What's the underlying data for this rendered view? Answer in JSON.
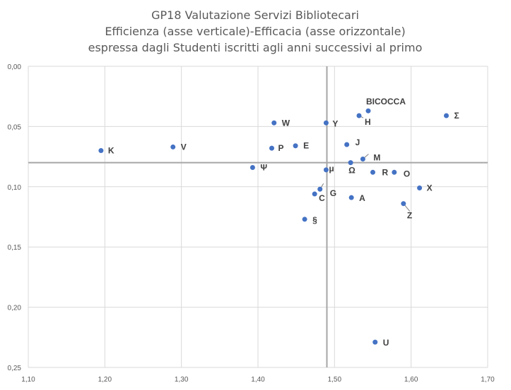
{
  "chart_data": {
    "type": "scatter",
    "title": [
      "GP18 Valutazione Servizi Bibliotecari",
      "Efficienza (asse verticale)-Efficacia (asse orizzontale)",
      "espressa dagli Studenti iscritti agli anni successivi al primo"
    ],
    "xlim": [
      1.1,
      1.7
    ],
    "ylim": [
      0.0,
      0.25
    ],
    "y_inverted": true,
    "x_ticks": [
      "1,10",
      "1,20",
      "1,30",
      "1,40",
      "1,50",
      "1,60",
      "1,70"
    ],
    "y_ticks": [
      "0,00",
      "0,05",
      "0,10",
      "0,15",
      "0,20",
      "0,25"
    ],
    "grid": true,
    "reference_lines": {
      "x": 1.49,
      "y": 0.08
    },
    "point_color": "#4472C4",
    "points": [
      {
        "label": "K",
        "x": 1.195,
        "y": 0.07
      },
      {
        "label": "V",
        "x": 1.289,
        "y": 0.067
      },
      {
        "label": "Ψ",
        "x": 1.393,
        "y": 0.084
      },
      {
        "label": "W",
        "x": 1.421,
        "y": 0.047
      },
      {
        "label": "P",
        "x": 1.418,
        "y": 0.068
      },
      {
        "label": "E",
        "x": 1.449,
        "y": 0.066
      },
      {
        "label": "Y",
        "x": 1.489,
        "y": 0.047
      },
      {
        "label": "μ",
        "x": 1.489,
        "y": 0.086
      },
      {
        "label": "G",
        "x": 1.481,
        "y": 0.102
      },
      {
        "label": "C",
        "x": 1.474,
        "y": 0.106
      },
      {
        "label": "§",
        "x": 1.461,
        "y": 0.127
      },
      {
        "label": "J",
        "x": 1.516,
        "y": 0.065
      },
      {
        "label": "Ω",
        "x": 1.521,
        "y": 0.08
      },
      {
        "label": "M",
        "x": 1.537,
        "y": 0.077
      },
      {
        "label": "A",
        "x": 1.522,
        "y": 0.109
      },
      {
        "label": "R",
        "x": 1.55,
        "y": 0.088
      },
      {
        "label": "O",
        "x": 1.578,
        "y": 0.088
      },
      {
        "label": "X",
        "x": 1.611,
        "y": 0.101
      },
      {
        "label": "Z",
        "x": 1.59,
        "y": 0.114
      },
      {
        "label": "BICOCCA",
        "x": 1.544,
        "y": 0.037
      },
      {
        "label": "H",
        "x": 1.532,
        "y": 0.041
      },
      {
        "label": "Σ",
        "x": 1.646,
        "y": 0.041
      },
      {
        "label": "U",
        "x": 1.553,
        "y": 0.229
      }
    ]
  }
}
